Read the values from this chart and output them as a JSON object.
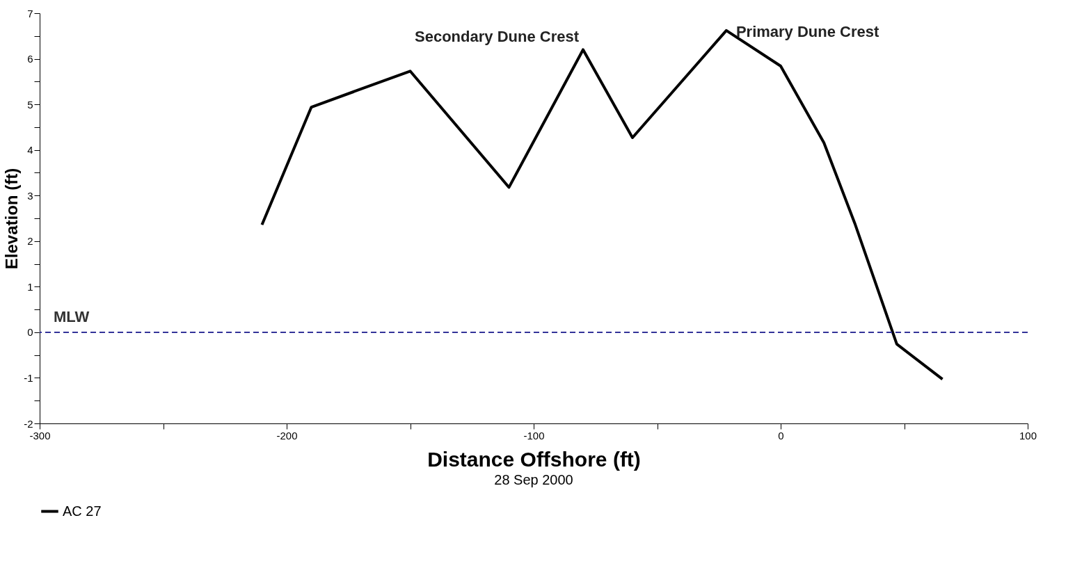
{
  "chart_data": {
    "type": "line",
    "xlabel": "Distance Offshore (ft)",
    "ylabel": "Elevation (ft)",
    "x": [
      -210,
      -190,
      -150,
      -110,
      -80,
      -60,
      -22,
      0,
      17.5,
      30,
      47,
      65.5
    ],
    "series": [
      {
        "name": "AC 27",
        "color": "#000000",
        "values": [
          2.36,
          4.94,
          5.73,
          3.18,
          6.2,
          4.27,
          6.62,
          5.84,
          4.16,
          2.39,
          -0.26,
          -1.03
        ]
      }
    ],
    "xlim": [
      -300,
      100
    ],
    "xticks": [
      -300,
      {
        "value": -250,
        "label": null
      },
      -200,
      {
        "value": -150,
        "label": null
      },
      -100,
      {
        "value": -50,
        "label": null
      },
      0,
      {
        "value": 50,
        "label": null
      },
      100
    ],
    "ylim": [
      -2,
      7
    ],
    "yticks": [
      -2,
      {
        "value": -1.5,
        "label": null
      },
      -1,
      {
        "value": -0.5,
        "label": null
      },
      0,
      {
        "value": 0.5,
        "label": null
      },
      1,
      {
        "value": 1.5,
        "label": null
      },
      2,
      {
        "value": 2.5,
        "label": null
      },
      3,
      {
        "value": 3.5,
        "label": null
      },
      4,
      {
        "value": 4.5,
        "label": null
      },
      5,
      {
        "value": 5.5,
        "label": null
      },
      6,
      {
        "value": 6.5,
        "label": null
      },
      7
    ],
    "ref_lines": [
      {
        "axis": "y",
        "value": 0,
        "label": "MLW",
        "color": "#333399",
        "line_style": "dashed"
      }
    ],
    "annotations": [
      {
        "text": "Secondary Dune Crest",
        "x": -80,
        "y": 6.2
      },
      {
        "text": "Primary Dune Crest",
        "x": -22,
        "y": 6.62
      },
      "28 Sep 2000"
    ],
    "legend": "bottom",
    "grid": false,
    "marker": "none",
    "line_style": "solid"
  }
}
